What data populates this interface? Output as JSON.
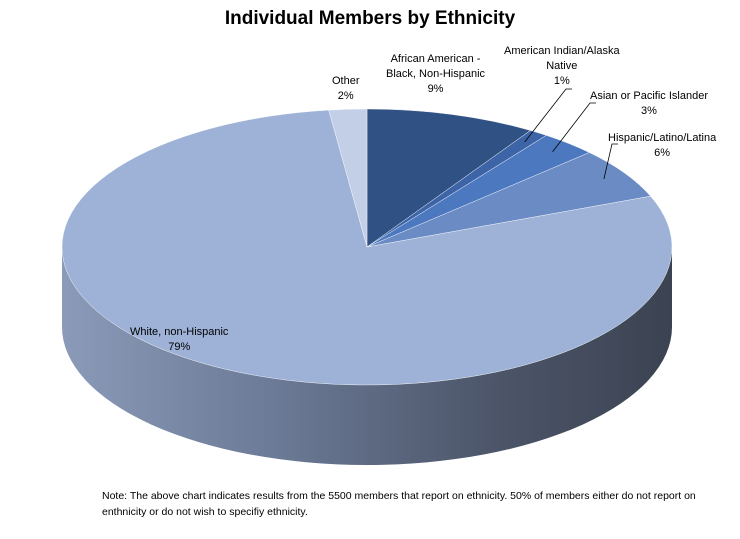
{
  "chart_data": {
    "type": "pie",
    "title": "Individual Members by Ethnicity",
    "slices": [
      {
        "label": "African American - Black, Non-Hispanic",
        "label_lines": [
          "African American -",
          "Black, Non-Hispanic"
        ],
        "percent_label": "9%",
        "value": 9,
        "color": "#2f5184"
      },
      {
        "label": "American Indian/Alaska Native",
        "label_lines": [
          "American Indian/Alaska",
          "Native"
        ],
        "percent_label": "1%",
        "value": 1,
        "color": "#3c64a6"
      },
      {
        "label": "Asian or Pacific Islander",
        "label_lines": [
          "Asian or Pacific Islander"
        ],
        "percent_label": "3%",
        "value": 3,
        "color": "#4b78be"
      },
      {
        "label": "Hispanic/Latino/Latina",
        "label_lines": [
          "Hispanic/Latino/Latina"
        ],
        "percent_label": "6%",
        "value": 6,
        "color": "#6b8bc4"
      },
      {
        "label": "White, non-Hispanic",
        "label_lines": [
          "White, non-Hispanic"
        ],
        "percent_label": "79%",
        "value": 79,
        "color": "#9db2d6"
      },
      {
        "label": "Other",
        "label_lines": [
          "Other"
        ],
        "percent_label": "2%",
        "value": 2,
        "color": "#c2cfe6"
      }
    ],
    "legend": "none",
    "style": "3d-pie"
  },
  "note": "Note: The above chart indicates results from the 5500 members that report on ethnicity.  50% of members either do not report on enthnicity or do not wish to specifiy ethnicity."
}
